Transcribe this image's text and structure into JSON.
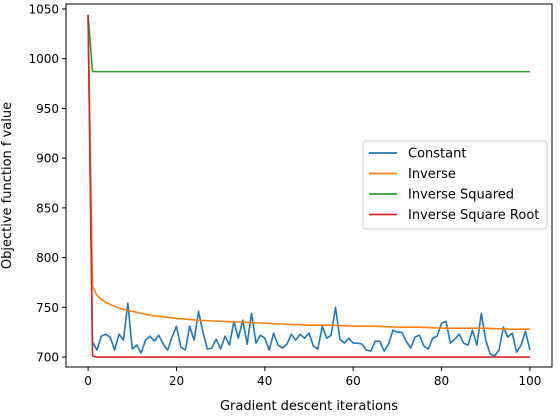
{
  "chart_data": {
    "type": "line",
    "title": "",
    "xlabel": "Gradient descent iterations",
    "ylabel": "Objective function f value",
    "xlim": [
      -5,
      105
    ],
    "ylim": [
      690,
      1055
    ],
    "x_ticks": [
      0,
      20,
      40,
      60,
      80,
      100
    ],
    "y_ticks": [
      700,
      750,
      800,
      850,
      900,
      950,
      1000,
      1050
    ],
    "grid": false,
    "legend_position": "center-right",
    "series": [
      {
        "name": "Constant",
        "color": "#1f77b4",
        "x": [
          0,
          1,
          2,
          3,
          4,
          5,
          6,
          7,
          8,
          9,
          10,
          11,
          12,
          13,
          14,
          15,
          16,
          17,
          18,
          19,
          20,
          21,
          22,
          23,
          24,
          25,
          26,
          27,
          28,
          29,
          30,
          31,
          32,
          33,
          34,
          35,
          36,
          37,
          38,
          39,
          40,
          41,
          42,
          43,
          44,
          45,
          46,
          47,
          48,
          49,
          50,
          51,
          52,
          53,
          54,
          55,
          56,
          57,
          58,
          59,
          60,
          61,
          62,
          63,
          64,
          65,
          66,
          67,
          68,
          69,
          70,
          71,
          72,
          73,
          74,
          75,
          76,
          77,
          78,
          79,
          80,
          81,
          82,
          83,
          84,
          85,
          86,
          87,
          88,
          89,
          90,
          91,
          92,
          93,
          94,
          95,
          96,
          97,
          98,
          99,
          100
        ],
        "y": [
          1044,
          715,
          707,
          721,
          723,
          720,
          707,
          723,
          717,
          754,
          708,
          712,
          704,
          717,
          721,
          716,
          722,
          713,
          707,
          720,
          731,
          710,
          707,
          731,
          717,
          746,
          725,
          708,
          709,
          718,
          708,
          721,
          712,
          736,
          719,
          737,
          713,
          744,
          714,
          722,
          719,
          707,
          724,
          712,
          709,
          713,
          723,
          717,
          723,
          719,
          724,
          711,
          708,
          731,
          719,
          722,
          750,
          718,
          714,
          719,
          714,
          714,
          713,
          707,
          706,
          716,
          716,
          706,
          713,
          727,
          725,
          725,
          716,
          709,
          720,
          722,
          711,
          708,
          719,
          721,
          734,
          736,
          714,
          718,
          723,
          714,
          712,
          727,
          712,
          744,
          717,
          703,
          701,
          707,
          730,
          720,
          724,
          705,
          712,
          726,
          707
        ]
      },
      {
        "name": "Inverse",
        "color": "#ff7f0e",
        "x": [
          0,
          1,
          2,
          3,
          4,
          5,
          6,
          7,
          8,
          9,
          10,
          12,
          14,
          16,
          18,
          20,
          25,
          30,
          35,
          40,
          45,
          50,
          55,
          60,
          65,
          70,
          75,
          80,
          85,
          90,
          95,
          100
        ],
        "y": [
          1044,
          771,
          762,
          758,
          755,
          753,
          751,
          749,
          748,
          747,
          746,
          744,
          742,
          741,
          740,
          739,
          737,
          736,
          735,
          734,
          733,
          732,
          732,
          731,
          731,
          730,
          730,
          729,
          729,
          729,
          728,
          728
        ]
      },
      {
        "name": "Inverse Squared",
        "color": "#2ca02c",
        "x": [
          0,
          1,
          2,
          100
        ],
        "y": [
          1044,
          987,
          987,
          987
        ]
      },
      {
        "name": "Inverse Square Root",
        "color": "#d62728",
        "x": [
          0,
          1,
          2,
          100
        ],
        "y": [
          1044,
          701,
          700,
          700
        ]
      }
    ]
  }
}
